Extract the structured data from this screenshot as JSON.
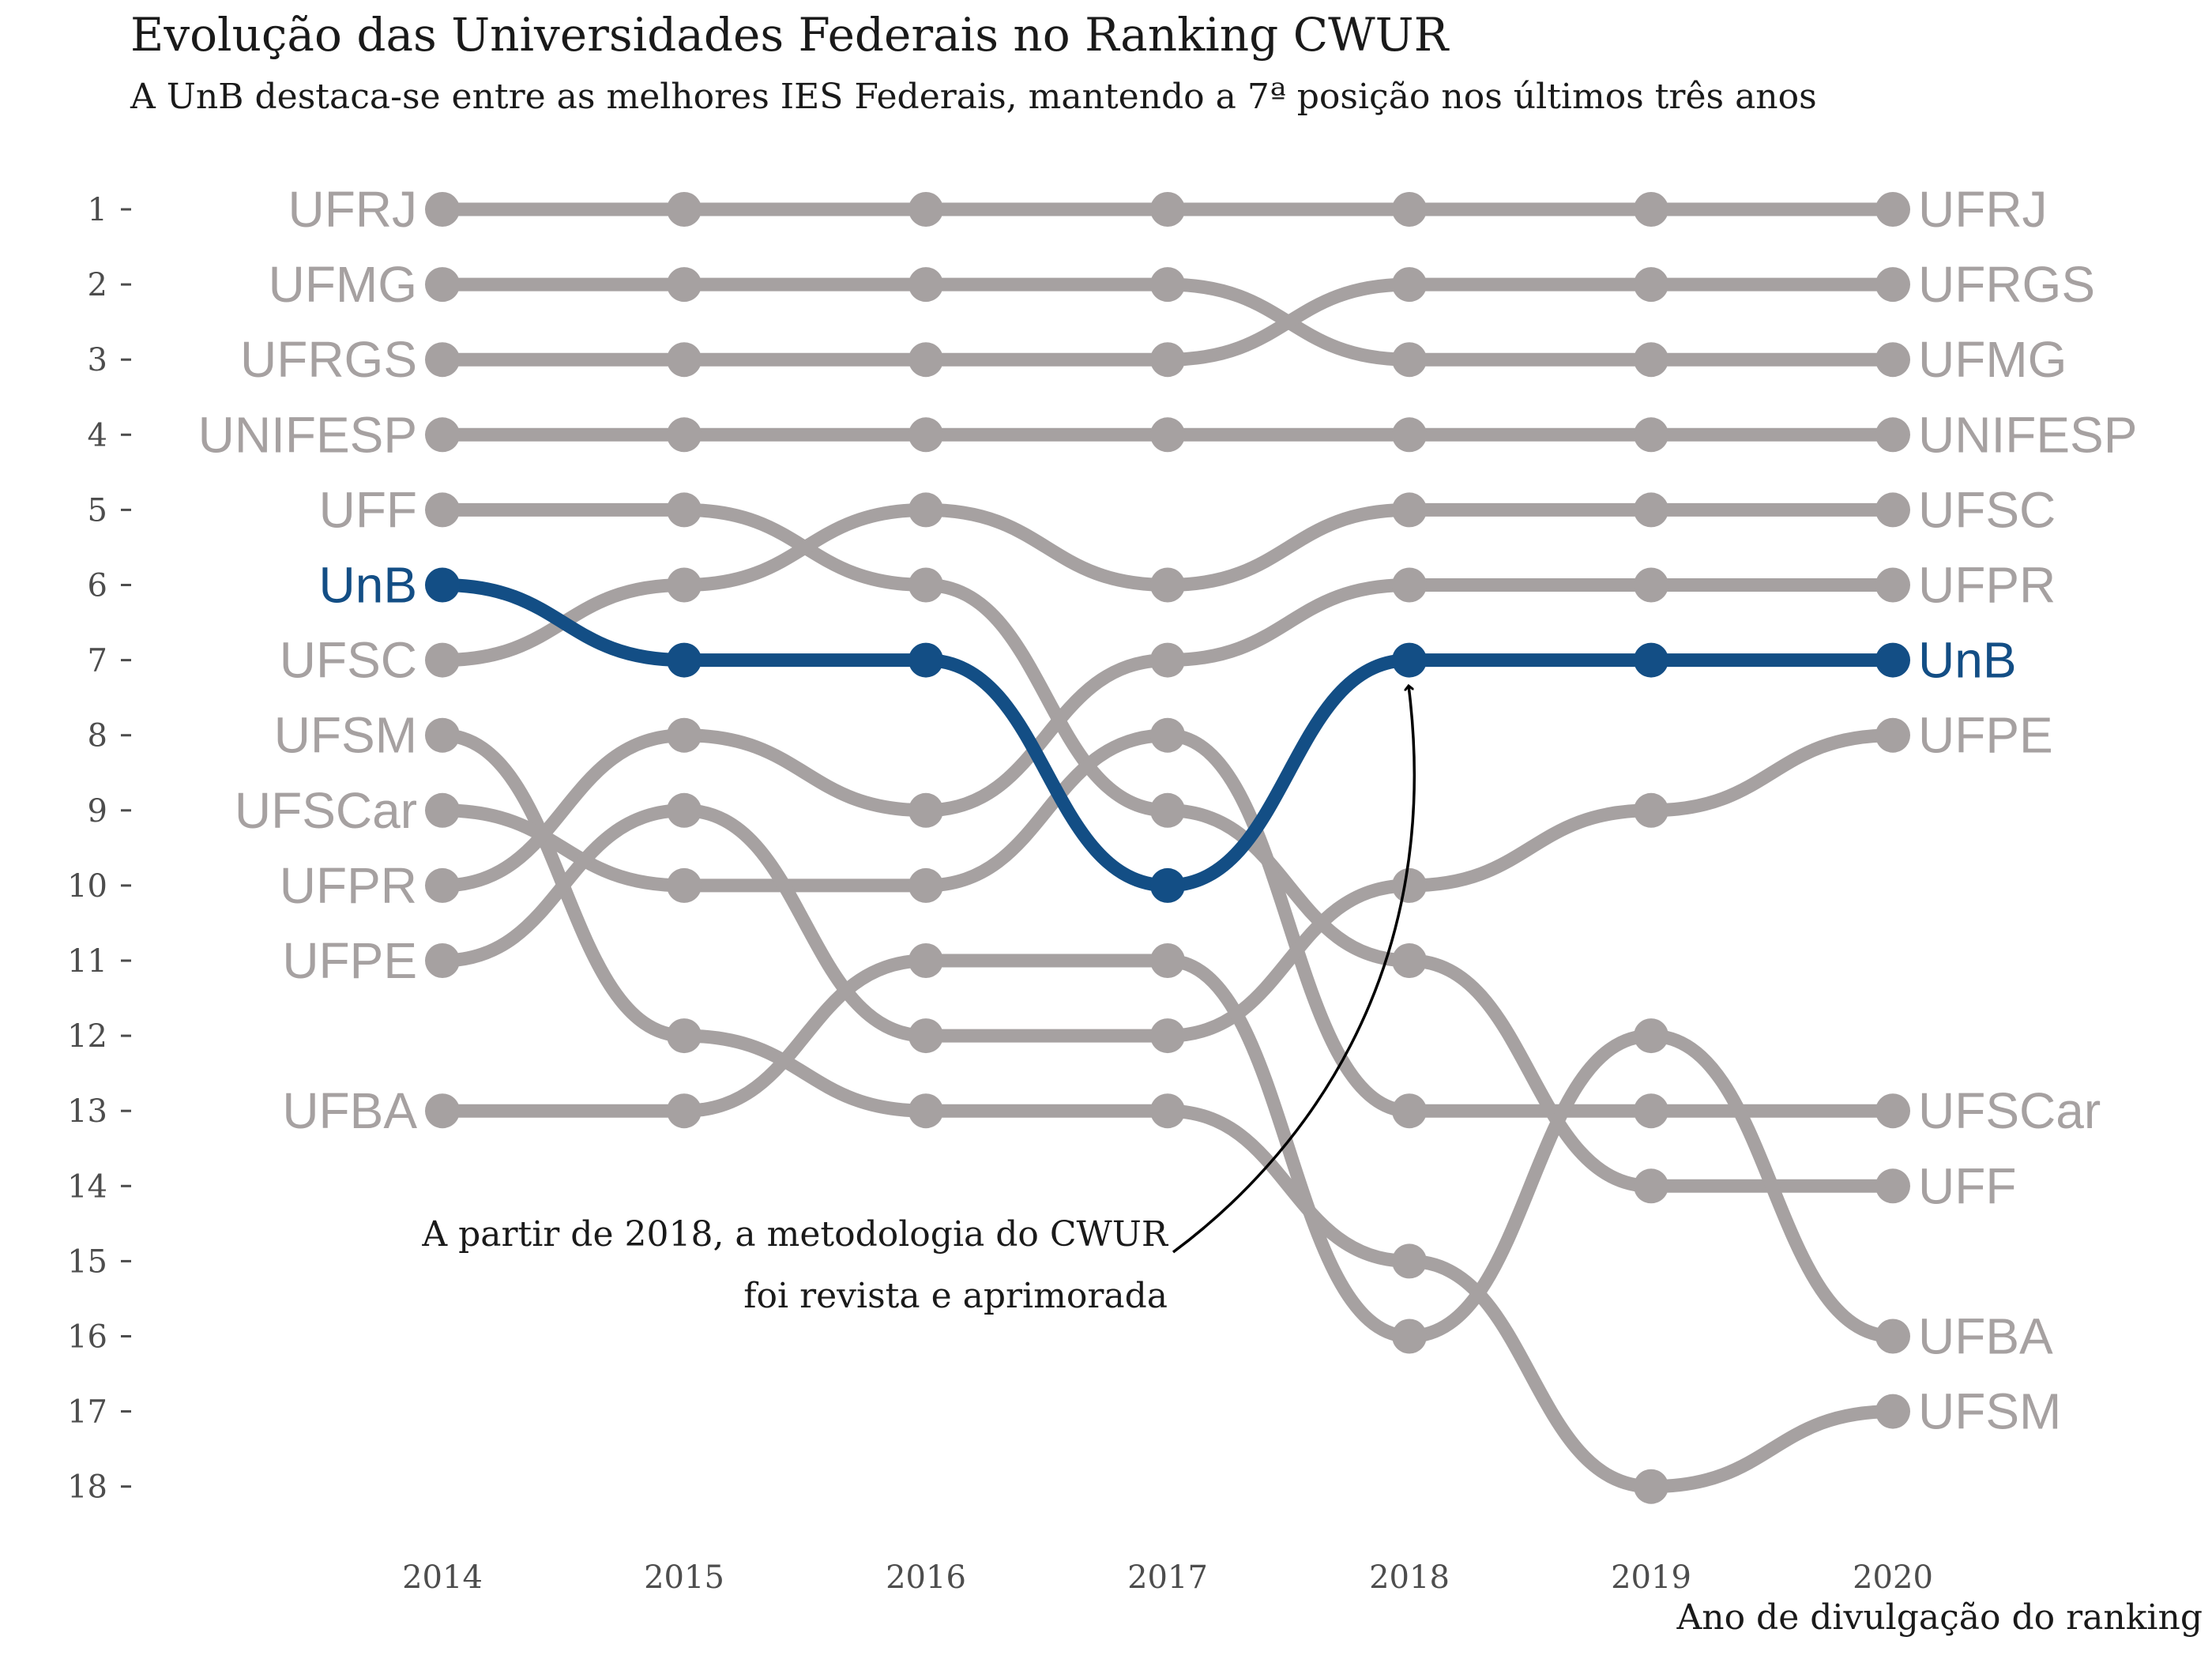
{
  "title": "Evolução das Universidades Federais no Ranking CWUR",
  "subtitle": "A UnB destaca-se entre as melhores IES Federais, mantendo a 7ª posição nos últimos três anos",
  "annotation": {
    "line1": "A partir de 2018, a metodologia do CWUR",
    "line2": "foi revista e aprimorada"
  },
  "colors": {
    "highlight": "#134e85",
    "other": "#a6a1a1",
    "text": "#1a1a1a",
    "tick": "#4d4d4d"
  },
  "chart_data": {
    "type": "line",
    "subtype": "bump",
    "title": "Evolução das Universidades Federais no Ranking CWUR",
    "xlabel": "Ano de divulgação do ranking",
    "ylabel": "",
    "x": [
      2014,
      2015,
      2016,
      2017,
      2018,
      2019,
      2020
    ],
    "y_ticks": [
      1,
      2,
      3,
      4,
      5,
      6,
      7,
      8,
      9,
      10,
      11,
      12,
      13,
      14,
      15,
      16,
      17,
      18
    ],
    "y_reversed": true,
    "ylim": [
      1,
      18
    ],
    "grid": false,
    "highlight": "UnB",
    "series": [
      {
        "name": "UFRJ",
        "values": [
          1,
          1,
          1,
          1,
          1,
          1,
          1
        ]
      },
      {
        "name": "UFMG",
        "values": [
          2,
          2,
          2,
          2,
          3,
          3,
          3
        ]
      },
      {
        "name": "UFRGS",
        "values": [
          3,
          3,
          3,
          3,
          2,
          2,
          2
        ]
      },
      {
        "name": "UNIFESP",
        "values": [
          4,
          4,
          4,
          4,
          4,
          4,
          4
        ]
      },
      {
        "name": "UFF",
        "values": [
          5,
          5,
          6,
          9,
          11,
          14,
          14
        ]
      },
      {
        "name": "UnB",
        "values": [
          6,
          7,
          7,
          10,
          7,
          7,
          7
        ]
      },
      {
        "name": "UFSC",
        "values": [
          7,
          6,
          5,
          6,
          5,
          5,
          5
        ]
      },
      {
        "name": "UFSM",
        "values": [
          8,
          12,
          13,
          13,
          15,
          18,
          17
        ]
      },
      {
        "name": "UFSCar",
        "values": [
          9,
          10,
          10,
          8,
          13,
          13,
          13
        ]
      },
      {
        "name": "UFPR",
        "values": [
          10,
          8,
          9,
          7,
          6,
          6,
          6
        ]
      },
      {
        "name": "UFPE",
        "values": [
          11,
          9,
          12,
          12,
          10,
          9,
          8
        ]
      },
      {
        "name": "UFBA",
        "values": [
          13,
          13,
          11,
          11,
          16,
          12,
          16
        ]
      }
    ]
  }
}
